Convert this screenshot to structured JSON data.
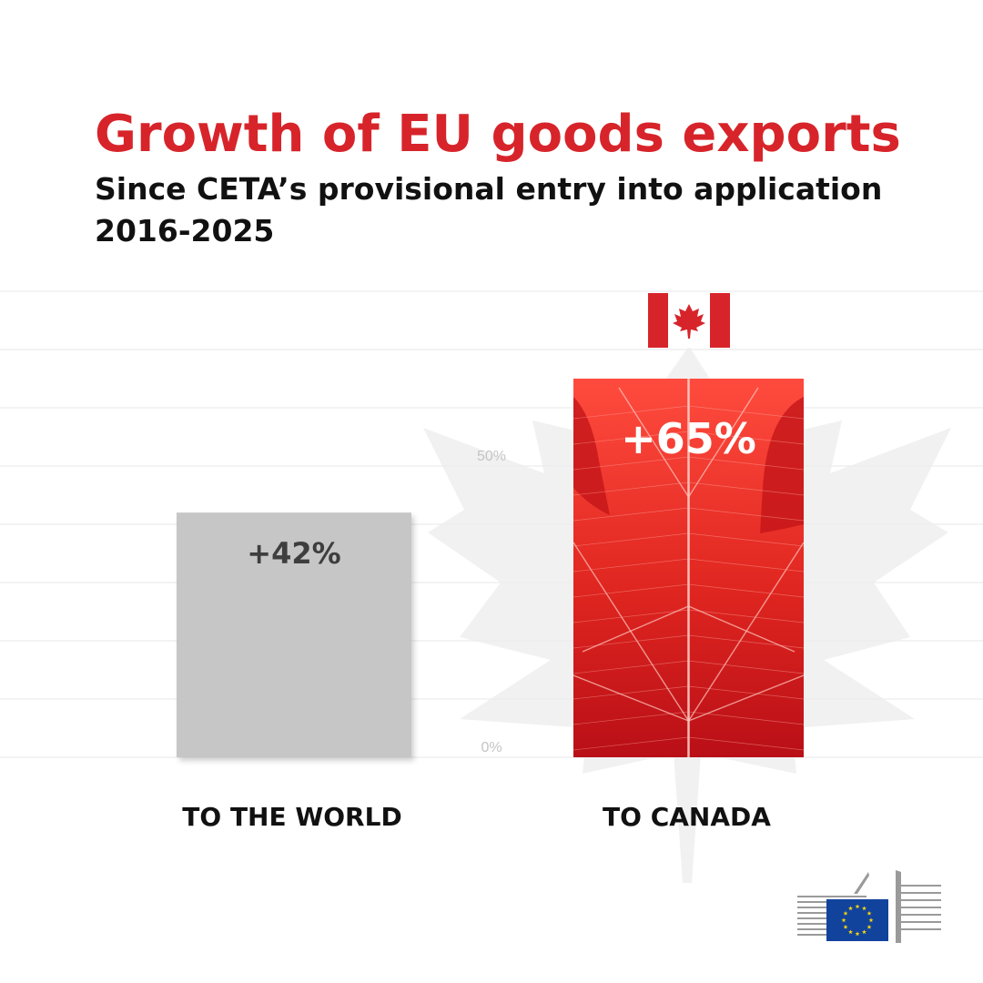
{
  "title": "Growth of EU goods exports",
  "subtitle": "Since CETA’s provisional entry into application",
  "period": "2016-2025",
  "colors": {
    "title": "#d7242a",
    "world_bar": "#c6c6c6",
    "canada_bar": "#d71f24",
    "gridline": "#efefef",
    "eu_blue": "#12439c",
    "eu_star": "#f5d60d"
  },
  "icons": [
    "canada-flag-icon",
    "maple-leaf-icon",
    "european-commission-logo"
  ],
  "chart_data": {
    "type": "bar",
    "categories": [
      "TO THE WORLD",
      "TO CANADA"
    ],
    "values": [
      42,
      65
    ],
    "value_labels": [
      "+42%",
      "+65%"
    ],
    "ylim": [
      0,
      65
    ],
    "yticks": [
      "0%",
      "50%"
    ],
    "grid": true
  }
}
